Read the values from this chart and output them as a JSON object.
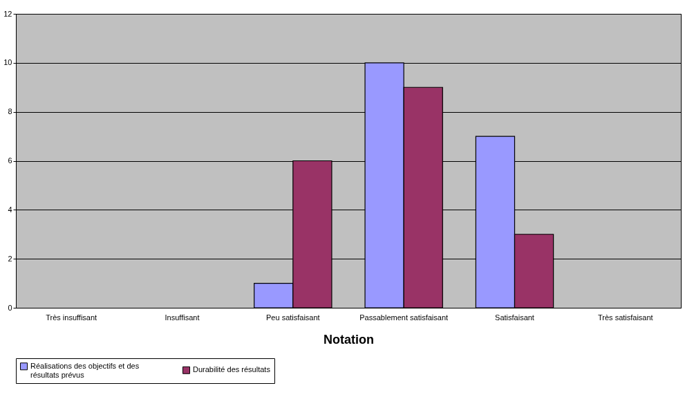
{
  "chart_data": {
    "type": "bar",
    "xlabel": "Notation",
    "categories": [
      "Très insuffisant",
      "Insuffisant",
      "Peu satisfaisant",
      "Passablement satisfaisant",
      "Satisfaisant",
      "Très satisfaisant"
    ],
    "series": [
      {
        "name": "Réalisations des objectifs et des résultats prévus",
        "color": "#9999ff",
        "values": [
          0,
          0,
          1,
          10,
          7,
          0
        ]
      },
      {
        "name": "Durabilité des résultats",
        "color": "#993366",
        "values": [
          0,
          0,
          6,
          9,
          3,
          0
        ]
      }
    ],
    "ylim": [
      0,
      12
    ],
    "yticks": [
      0,
      2,
      4,
      6,
      8,
      10,
      12
    ],
    "grid": "y",
    "legend": "bottom"
  }
}
